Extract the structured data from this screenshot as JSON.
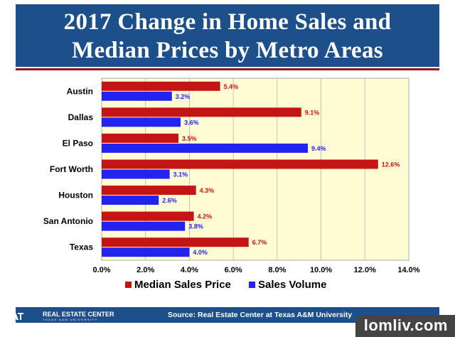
{
  "header": {
    "title_line1": "2017 Change in Home Sales and",
    "title_line2": "Median Prices by Metro Areas"
  },
  "footer": {
    "org_name": "REAL ESTATE CENTER",
    "org_sub": "TEXAS A&M UNIVERSITY",
    "source": "Source:  Real Estate Center at Texas A&M University"
  },
  "watermark": "lomliv.com",
  "colors": {
    "banner": "#1d4f8a",
    "plot_background": "#fefcd2",
    "median_price": "#c41414",
    "sales_volume": "#2323f0",
    "median_label": "#c41414",
    "volume_label": "#2323f0"
  },
  "chart_data": {
    "type": "bar",
    "orientation": "horizontal",
    "categories": [
      "Austin",
      "Dallas",
      "El Paso",
      "Fort Worth",
      "Houston",
      "San Antonio",
      "Texas"
    ],
    "series": [
      {
        "name": "Median Sales Price",
        "values": [
          5.4,
          9.1,
          3.5,
          12.6,
          4.3,
          4.2,
          6.7
        ],
        "labels": [
          "5.4%",
          "9.1%",
          "3.5%",
          "12.6%",
          "4.3%",
          "4.2%",
          "6.7%"
        ]
      },
      {
        "name": "Sales Volume",
        "values": [
          3.2,
          3.6,
          9.4,
          3.1,
          2.6,
          3.8,
          4.0
        ],
        "labels": [
          "3.2%",
          "3.6%",
          "9.4%",
          "3.1%",
          "2.6%",
          "3.8%",
          "4.0%"
        ]
      }
    ],
    "xlim": [
      0,
      14
    ],
    "xticks": [
      "0.0%",
      "2.0%",
      "4.0%",
      "6.0%",
      "8.0%",
      "10.0%",
      "12.0%",
      "14.0%"
    ],
    "grid": true,
    "legend_position": "bottom"
  }
}
